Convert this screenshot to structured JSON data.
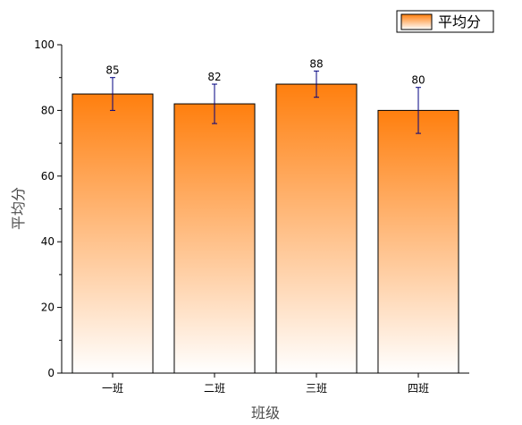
{
  "chart_data": {
    "type": "bar",
    "categories": [
      "一班",
      "二班",
      "三班",
      "四班"
    ],
    "series": [
      {
        "name": "平均分",
        "values": [
          85,
          82,
          88,
          80
        ],
        "error_upper": [
          90,
          88,
          92,
          87
        ],
        "error_lower": [
          80,
          76,
          84,
          73
        ]
      }
    ],
    "data_labels": [
      "85",
      "82",
      "88",
      "80"
    ],
    "xlabel": "班级",
    "ylabel": "平均分",
    "ylim": [
      0,
      100
    ],
    "yticks": [
      0,
      20,
      40,
      60,
      80,
      100
    ],
    "grid": false,
    "legend_position": "top-right",
    "colors": {
      "bar_top": "#ff7f0e",
      "bar_bottom": "#ffffff",
      "bar_edge": "#000000",
      "error_bar": "#000080",
      "axis": "#000000"
    }
  }
}
